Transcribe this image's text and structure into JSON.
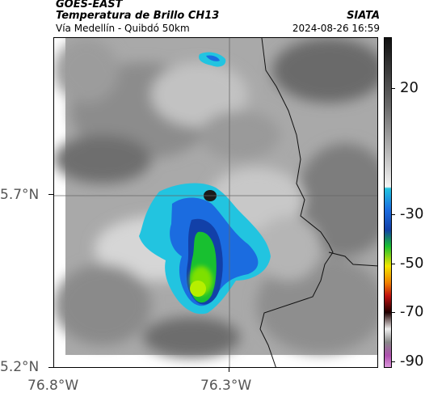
{
  "header": {
    "agency": "GOES-EAST",
    "product": "Temperatura de Brillo CH13",
    "region": "Vía Medellín - Quibdó 50km",
    "brand": "SIATA",
    "timestamp": "2024-08-26 16:59"
  },
  "axes": {
    "y_labels": [
      "5.7°N",
      "5.2°N"
    ],
    "x_labels": [
      "76.8°W",
      "76.3°W"
    ]
  },
  "colorbar": {
    "labels": [
      "20",
      "-30",
      "-50",
      "-70",
      "-90"
    ],
    "colors": {
      "warm_top": "#1a1a1a",
      "gray_mid": "#9a9a9a",
      "light": "#f0f0f0",
      "cyan": "#22c4e0",
      "blue": "#1240a8",
      "green": "#18c030",
      "yellow": "#f4e600",
      "orange": "#f08000",
      "red": "#c01010",
      "dark": "#200000",
      "magenta": "#b050b0"
    }
  }
}
